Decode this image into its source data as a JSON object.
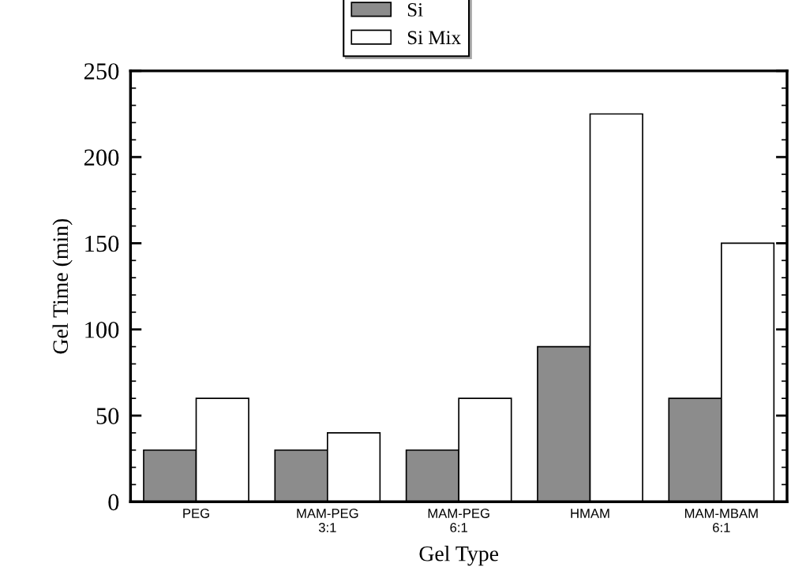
{
  "chart_data": {
    "type": "bar",
    "xlabel": "Gel Type",
    "ylabel": "Gel Time (min)",
    "categories": [
      "PEG",
      "MAM-PEG\n3:1",
      "MAM-PEG\n6:1",
      "HMAM",
      "MAM-MBAM\n6:1"
    ],
    "series": [
      {
        "name": "Si",
        "color": "#8c8c8c",
        "values": [
          30,
          30,
          30,
          90,
          60
        ]
      },
      {
        "name": "Si Mix",
        "color": "#ffffff",
        "values": [
          60,
          40,
          60,
          225,
          150
        ]
      }
    ],
    "ylim": [
      0,
      250
    ],
    "yticks": [
      0,
      50,
      100,
      150,
      200,
      250
    ],
    "grid": false,
    "legend": "top"
  }
}
